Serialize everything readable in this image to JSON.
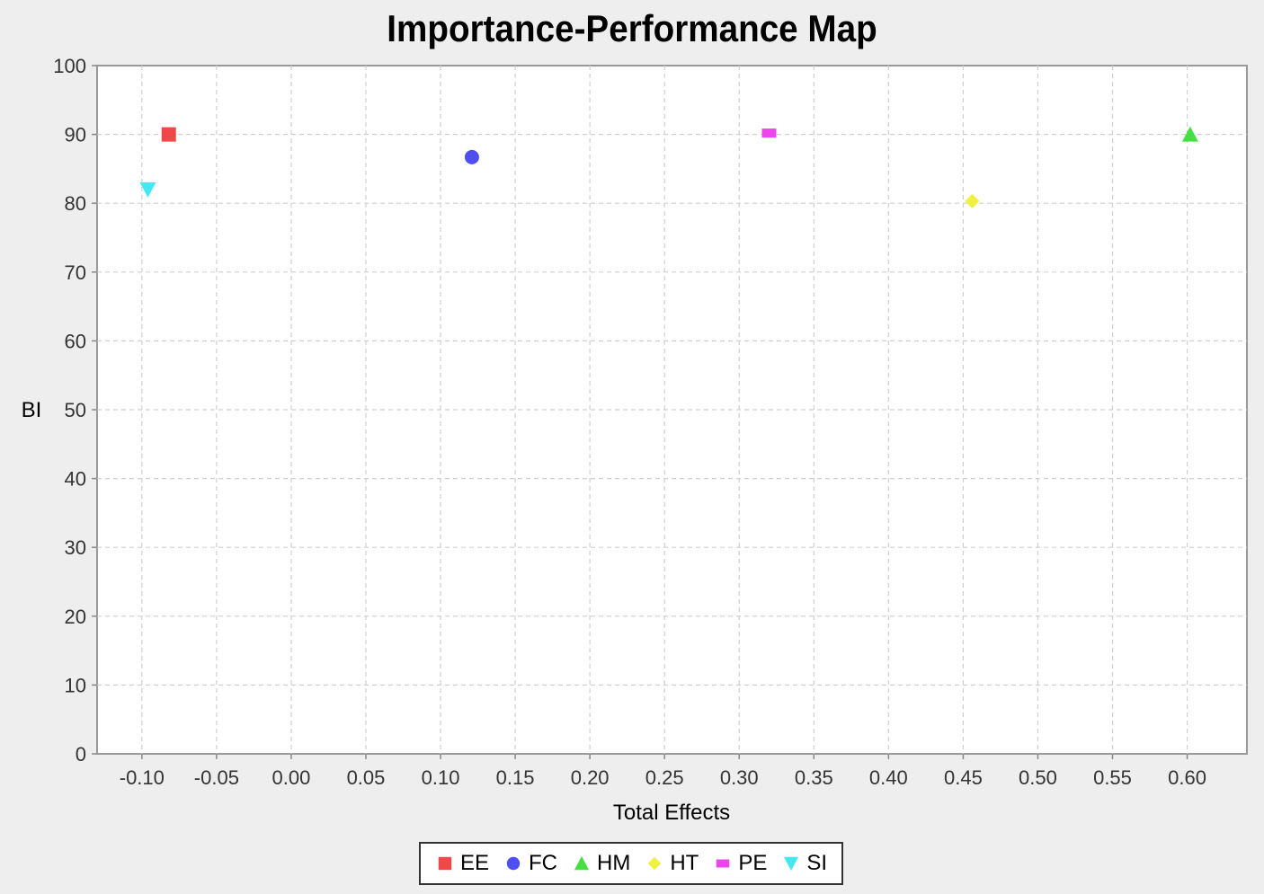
{
  "chart_data": {
    "type": "scatter",
    "title": "Importance-Performance Map",
    "xlabel": "Total Effects",
    "ylabel": "BI",
    "xlim": [
      -0.13,
      0.64
    ],
    "ylim": [
      0,
      100
    ],
    "x_ticks": [
      "-0.10",
      "-0.05",
      "0.00",
      "0.05",
      "0.10",
      "0.15",
      "0.20",
      "0.25",
      "0.30",
      "0.35",
      "0.40",
      "0.45",
      "0.50",
      "0.55",
      "0.60"
    ],
    "x_tick_values": [
      -0.1,
      -0.05,
      0.0,
      0.05,
      0.1,
      0.15,
      0.2,
      0.25,
      0.3,
      0.35,
      0.4,
      0.45,
      0.5,
      0.55,
      0.6
    ],
    "y_ticks": [
      "0",
      "10",
      "20",
      "30",
      "40",
      "50",
      "60",
      "70",
      "80",
      "90",
      "100"
    ],
    "y_tick_values": [
      0,
      10,
      20,
      30,
      40,
      50,
      60,
      70,
      80,
      90,
      100
    ],
    "grid": true,
    "legend_position": "bottom",
    "series": [
      {
        "name": "EE",
        "x": -0.082,
        "y": 90.0,
        "color": "#f04848",
        "marker": "square"
      },
      {
        "name": "FC",
        "x": 0.121,
        "y": 86.7,
        "color": "#4f4ff0",
        "marker": "circle"
      },
      {
        "name": "HM",
        "x": 0.602,
        "y": 90.0,
        "color": "#44e044",
        "marker": "triangle-up"
      },
      {
        "name": "HT",
        "x": 0.456,
        "y": 80.3,
        "color": "#f0f040",
        "marker": "diamond"
      },
      {
        "name": "PE",
        "x": 0.32,
        "y": 90.2,
        "color": "#ee44ee",
        "marker": "rect-horizontal"
      },
      {
        "name": "SI",
        "x": -0.096,
        "y": 82.0,
        "color": "#44e8f0",
        "marker": "triangle-down"
      }
    ]
  }
}
